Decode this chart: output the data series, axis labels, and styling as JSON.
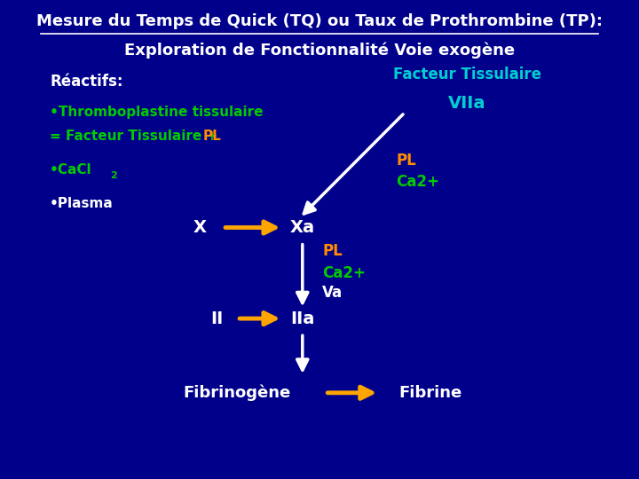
{
  "bg_color": "#00008B",
  "title_line1": "Mesure du Temps de Quick (TQ) ou Taux de Prothrombine (TP):",
  "title_line2": "Exploration de Fonctionnalité Voie exogène",
  "title_color": "#FFFFFF",
  "title_fontsize": 13,
  "subtitle_fontsize": 13,
  "facteur_tissulaire": "Facteur Tissulaire",
  "facteur_color": "#00CED1",
  "VIIa_color": "#00CED1",
  "reactifs_label": "Réactifs:",
  "reactifs_color": "#FFFFFF",
  "bullet1_line1": "•Thromboplastine tissulaire",
  "bullet1_color": "#00CC00",
  "PL_color": "#FF8C00",
  "white_text": "#FFFFFF",
  "orange_color": "#FFA500",
  "green_color": "#00CC00"
}
